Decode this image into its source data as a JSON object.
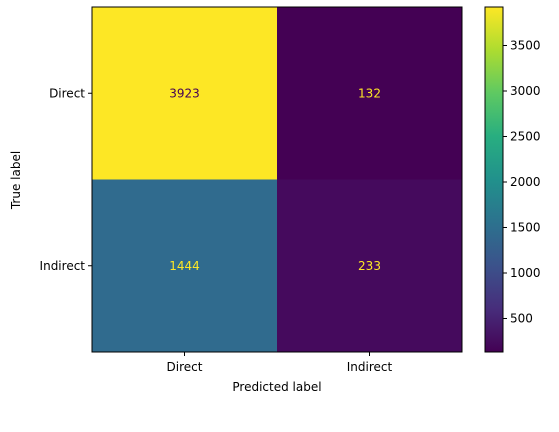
{
  "chart_data": {
    "type": "heatmap",
    "title": "",
    "xlabel": "Predicted label",
    "ylabel": "True label",
    "x_categories": [
      "Direct",
      "Indirect"
    ],
    "y_categories": [
      "Direct",
      "Indirect"
    ],
    "matrix": [
      [
        3923,
        132
      ],
      [
        1444,
        233
      ]
    ],
    "colormap": "viridis",
    "color_range": [
      132,
      3923
    ],
    "colorbar_ticks": [
      500,
      1000,
      1500,
      2000,
      2500,
      3000,
      3500
    ],
    "text_colors": {
      "on_dark": "#fde725",
      "on_light": "#440154"
    }
  }
}
